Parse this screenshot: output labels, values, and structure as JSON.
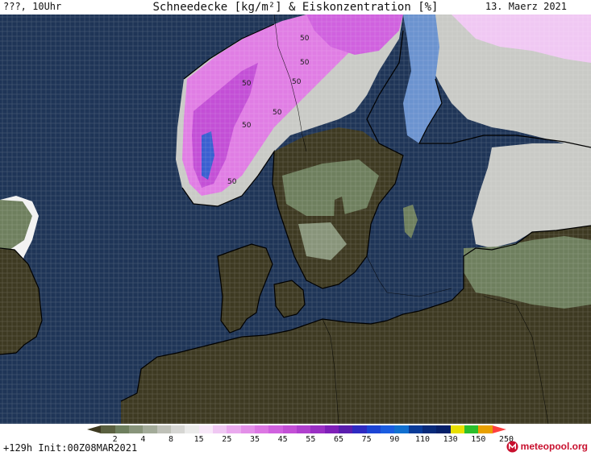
{
  "header": {
    "run": "???, 10Uhr",
    "title": "Schneedecke [kg/m²] & Eiskonzentration [%]",
    "date": "13. Maerz 2021"
  },
  "map": {
    "contour_label": "50",
    "colors": {
      "sea": "#1f3557",
      "land_bare": "#3e3a22",
      "snow_light": "#6e7f5e",
      "snow_grey": "#c9cac6",
      "snow_pink": "#e07de4",
      "snow_magenta": "#c34fd6",
      "snow_blue": "#3a5fd0",
      "sea_ice": "#6b93cf",
      "coast": "#000000"
    }
  },
  "legend": {
    "colors": [
      "#3e3a22",
      "#5a6040",
      "#6e7f5e",
      "#88947a",
      "#a3ab99",
      "#bfc1b8",
      "#d6d6d3",
      "#ebebea",
      "#f7e8f8",
      "#f0c8f3",
      "#eaaaee",
      "#e38fe8",
      "#dc77e3",
      "#d061df",
      "#c34fd6",
      "#b03fce",
      "#9a2fc4",
      "#7f1fb8",
      "#5a1dae",
      "#2e2ac2",
      "#1c44d4",
      "#1a5de0",
      "#1170d0",
      "#0a3b98",
      "#082a7a",
      "#06206a",
      "#e8e000",
      "#2cbf2c",
      "#e8a000",
      "#ff4040"
    ],
    "labels": [
      "2",
      "4",
      "8",
      "15",
      "25",
      "35",
      "45",
      "55",
      "65",
      "75",
      "90",
      "110",
      "130",
      "150",
      "250"
    ]
  },
  "footer": {
    "init": "+129h  Init:00Z08MAR2021",
    "brand": "meteopool.org"
  }
}
